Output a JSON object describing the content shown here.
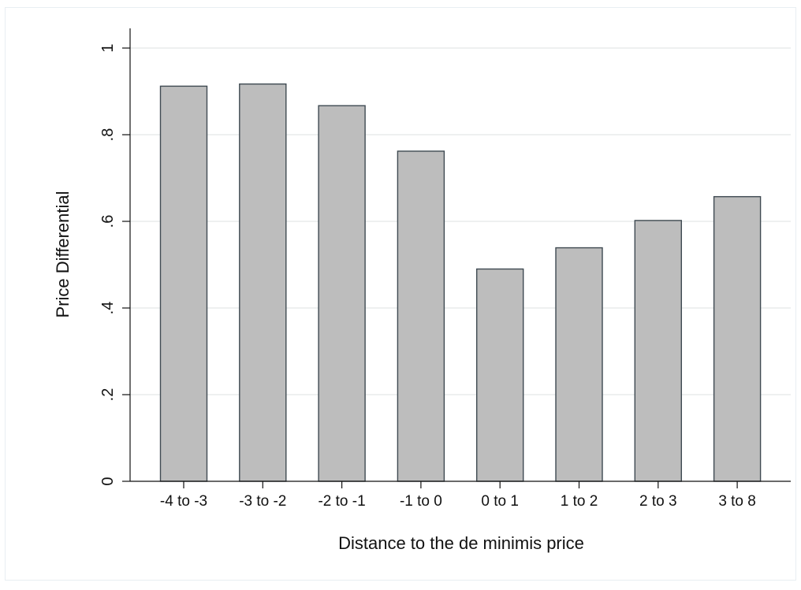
{
  "chart_data": {
    "type": "bar",
    "title": "",
    "xlabel": "Distance to the de minimis price",
    "ylabel": "Price Differential",
    "categories": [
      "-4 to -3",
      "-3 to -2",
      "-2 to -1",
      "-1 to 0",
      "0 to 1",
      "1 to 2",
      "2 to 3",
      "3 to 8"
    ],
    "values": [
      0.912,
      0.917,
      0.867,
      0.762,
      0.49,
      0.539,
      0.602,
      0.657
    ],
    "ylim": [
      0,
      1
    ],
    "yticks": [
      0,
      0.2,
      0.4,
      0.6,
      0.8,
      1
    ],
    "ytick_labels": [
      "0",
      ".2",
      ".4",
      ".6",
      ".8",
      "1"
    ],
    "grid": true,
    "colors": {
      "bar_fill": "#bdbdbd",
      "bar_edge": "#3f4a52",
      "grid": "#e3e6e8",
      "axis": "#111111",
      "frame": "#e8eef2"
    }
  }
}
